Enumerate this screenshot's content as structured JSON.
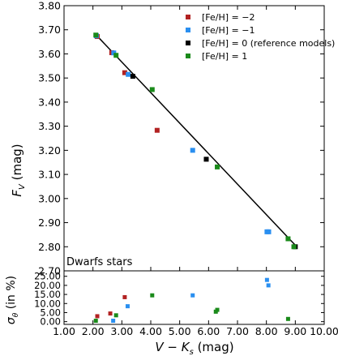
{
  "chart_data": [
    {
      "type": "scatter",
      "title": "",
      "xlabel": "",
      "ylabel": "F_V (mag)",
      "ylabel_main": "F",
      "ylabel_sub": "V",
      "ylabel_unit": " (mag)",
      "xlim": [
        1.0,
        10.0
      ],
      "ylim": [
        2.7,
        3.8
      ],
      "yticks": [
        "2.70",
        "2.80",
        "2.90",
        "3.00",
        "3.10",
        "3.20",
        "3.30",
        "3.40",
        "3.50",
        "3.60",
        "3.70",
        "3.80"
      ],
      "grid": false,
      "legend_position": "top-right",
      "annotation": "Dwarfs stars",
      "series": [
        {
          "name": "[Fe/H] = −2",
          "color": "#b22222",
          "x": [
            2.15,
            2.65,
            3.1,
            4.22
          ],
          "y": [
            3.672,
            3.605,
            3.522,
            3.283
          ]
        },
        {
          "name": "[Fe/H] = −1",
          "color": "#2a8ff0",
          "x": [
            2.12,
            2.72,
            3.22,
            5.45,
            8.02,
            8.08
          ],
          "y": [
            3.675,
            3.604,
            3.515,
            3.2,
            2.862,
            2.862
          ]
        },
        {
          "name": "[Fe/H] = 0 (reference models)",
          "color": "#000000",
          "x": [
            3.38,
            5.92,
            9.0
          ],
          "y": [
            3.507,
            3.163,
            2.8
          ]
        },
        {
          "name": "[Fe/H] = 1",
          "color": "#1a8a1a",
          "x": [
            2.1,
            2.8,
            4.05,
            6.3,
            8.75,
            8.95
          ],
          "y": [
            3.678,
            3.594,
            3.452,
            3.131,
            2.833,
            2.8
          ]
        }
      ],
      "fit_line": {
        "x": [
          2.1,
          9.05
        ],
        "y": [
          3.68,
          2.8
        ],
        "color": "#000000"
      }
    },
    {
      "type": "scatter",
      "title": "",
      "xlabel": "V − K_s (mag)",
      "xlabel_main": "V − K",
      "xlabel_sub": "s",
      "xlabel_unit": " (mag)",
      "ylabel": "σ_θ (in %)",
      "ylabel_main": "σ",
      "ylabel_sub": "θ",
      "ylabel_unit": " (in %)",
      "xlim": [
        1.0,
        10.0
      ],
      "ylim": [
        -1.5,
        28.0
      ],
      "xticks": [
        "1.00",
        "2.00",
        "3.00",
        "4.00",
        "5.00",
        "6.00",
        "7.00",
        "8.00",
        "9.00",
        "10.00"
      ],
      "yticks": [
        "0.00",
        "5.00",
        "10.00",
        "15.00",
        "20.00",
        "25.00"
      ],
      "grid": false,
      "series": [
        {
          "name": "[Fe/H] = −2",
          "color": "#b22222",
          "x": [
            2.15,
            2.6,
            3.1
          ],
          "y": [
            3.0,
            4.5,
            13.5
          ]
        },
        {
          "name": "[Fe/H] = −1",
          "color": "#2a8ff0",
          "x": [
            2.7,
            3.2,
            5.45,
            8.02,
            8.07
          ],
          "y": [
            0.5,
            8.5,
            14.5,
            23.0,
            20.0
          ]
        },
        {
          "name": "[Fe/H] = 1",
          "color": "#1a8a1a",
          "x": [
            2.1,
            2.8,
            4.05,
            6.25,
            6.3,
            8.75
          ],
          "y": [
            0.5,
            3.5,
            14.5,
            5.5,
            6.5,
            1.5
          ]
        }
      ]
    }
  ]
}
